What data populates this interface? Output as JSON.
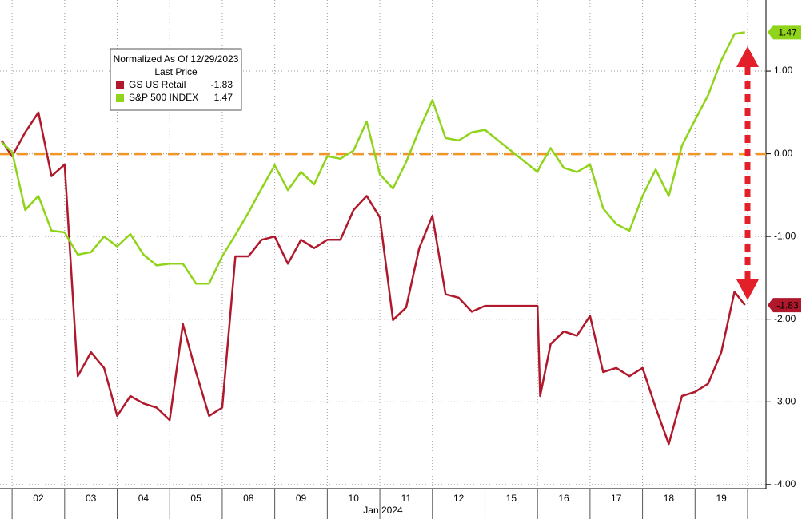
{
  "chart_data": {
    "type": "line",
    "legend_title": "Normalized As Of 12/29/2023",
    "legend_subtitle": "Last Price",
    "x_label": "Jan 2024",
    "x": [
      -0.2,
      0,
      0.25,
      0.5,
      0.75,
      1,
      1.25,
      1.5,
      1.75,
      2,
      2.25,
      2.5,
      2.75,
      3,
      3.25,
      3.5,
      3.75,
      4,
      4.25,
      4.5,
      4.75,
      5,
      5.25,
      5.5,
      5.75,
      6,
      6.25,
      6.5,
      6.75,
      7,
      7.25,
      7.5,
      7.75,
      8,
      8.25,
      8.5,
      8.75,
      9,
      10,
      10.05,
      10.25,
      10.5,
      10.75,
      11,
      11.25,
      11.5,
      11.75,
      12,
      12.25,
      12.5,
      12.75,
      13,
      13.25,
      13.5,
      13.75,
      13.95
    ],
    "series": [
      {
        "name": "GS US Retail",
        "color": "#b0182b",
        "label_color": "#ffffff",
        "values": [
          0.16,
          -0.03,
          0.26,
          0.5,
          -0.27,
          -0.13,
          -2.69,
          -2.4,
          -2.59,
          -3.17,
          -2.93,
          -3.02,
          -3.07,
          -3.22,
          -2.06,
          -2.64,
          -3.17,
          -3.07,
          -1.24,
          -1.24,
          -1.04,
          -1.0,
          -1.33,
          -1.04,
          -1.14,
          -1.04,
          -1.04,
          -0.68,
          -0.51,
          -0.77,
          -2.01,
          -1.86,
          -1.14,
          -0.75,
          -1.7,
          -1.74,
          -1.91,
          -1.84,
          -1.84,
          -2.93,
          -2.3,
          -2.15,
          -2.2,
          -1.96,
          -2.64,
          -2.59,
          -2.69,
          -2.59,
          -3.07,
          -3.51,
          -2.93,
          -2.88,
          -2.78,
          -2.4,
          -1.67,
          -1.83
        ]
      },
      {
        "name": "S&P 500 INDEX",
        "color": "#8fd41a",
        "label_color": "#000000",
        "values": [
          0.14,
          0.02,
          -0.68,
          -0.51,
          -0.93,
          -0.95,
          -1.22,
          -1.19,
          -1.0,
          -1.12,
          -0.97,
          -1.22,
          -1.35,
          -1.33,
          -1.33,
          -1.57,
          -1.57,
          -1.24,
          -0.98,
          -0.71,
          -0.42,
          -0.14,
          -0.44,
          -0.22,
          -0.37,
          -0.03,
          -0.06,
          0.04,
          0.39,
          -0.25,
          -0.42,
          -0.1,
          0.29,
          0.65,
          0.19,
          0.16,
          0.26,
          0.29,
          -0.22,
          -0.15,
          0.07,
          -0.17,
          -0.22,
          -0.13,
          -0.66,
          -0.85,
          -0.93,
          -0.51,
          -0.19,
          -0.51,
          0.1,
          0.41,
          0.71,
          1.13,
          1.45,
          1.47
        ]
      }
    ],
    "xlim": [
      -0.23,
      14.35
    ],
    "xticks": [
      {
        "value": 0.5,
        "label": "02"
      },
      {
        "value": 1.5,
        "label": "03"
      },
      {
        "value": 2.5,
        "label": "04"
      },
      {
        "value": 3.5,
        "label": "05"
      },
      {
        "value": 4.5,
        "label": "08"
      },
      {
        "value": 5.5,
        "label": "09"
      },
      {
        "value": 6.5,
        "label": "10"
      },
      {
        "value": 7.5,
        "label": "11"
      },
      {
        "value": 8.5,
        "label": "12"
      },
      {
        "value": 9.5,
        "label": "15"
      },
      {
        "value": 10.5,
        "label": "16"
      },
      {
        "value": 11.5,
        "label": "17"
      },
      {
        "value": 12.5,
        "label": "18"
      },
      {
        "value": 13.5,
        "label": "19"
      }
    ],
    "ylim": [
      -4.05,
      1.86
    ],
    "yticks": [
      {
        "value": -4,
        "label": "-4.00"
      },
      {
        "value": -3,
        "label": "-3.00"
      },
      {
        "value": -2,
        "label": "-2.00"
      },
      {
        "value": -1,
        "label": "-1.00"
      },
      {
        "value": 0,
        "label": "0.00"
      },
      {
        "value": 1,
        "label": "1.00"
      }
    ],
    "grid": true,
    "reference_line": {
      "value": 0,
      "color": "#f0962a"
    }
  }
}
